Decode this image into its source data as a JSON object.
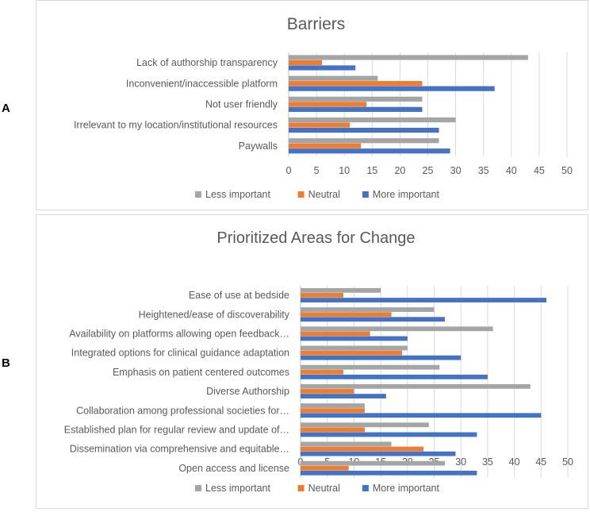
{
  "panel_labels": [
    "A",
    "B"
  ],
  "colors": {
    "less": "#A5A5A5",
    "neutral": "#ED7D31",
    "more": "#4472C4",
    "grid": "#D9D9D9",
    "text": "#595959"
  },
  "chart_data": [
    {
      "type": "bar",
      "orientation": "horizontal",
      "title": "Barriers",
      "categories": [
        "Lack of authorship transparency",
        "Inconvenient/inaccessible platform",
        "Not user friendly",
        "Irrelevant to my location/institutional resources",
        "Paywalls"
      ],
      "series": [
        {
          "name": "Less important",
          "values": [
            43,
            16,
            24,
            30,
            27
          ]
        },
        {
          "name": "Neutral",
          "values": [
            6,
            24,
            14,
            11,
            13
          ]
        },
        {
          "name": "More important",
          "values": [
            12,
            37,
            24,
            27,
            29
          ]
        }
      ],
      "xlim": [
        0,
        50
      ],
      "ticks": [
        "0",
        "5",
        "10",
        "15",
        "20",
        "25",
        "30",
        "35",
        "40",
        "45",
        "50"
      ],
      "legend": [
        "Less important",
        "Neutral",
        "More important"
      ],
      "legend_position": "bottom",
      "grid": true
    },
    {
      "type": "bar",
      "orientation": "horizontal",
      "title": "Prioritized Areas for Change",
      "categories": [
        "Ease of use at bedside",
        "Heightened/ease of discoverability",
        "Availability on platforms allowing open feedback…",
        "Integrated options for clinical guidance adaptation",
        "Emphasis on patient centered outcomes",
        "Diverse Authorship",
        "Collaboration among professional societies for…",
        "Established plan for regular review and update of…",
        "Dissemination via comprehensive and equitable…",
        "Open access and license"
      ],
      "series": [
        {
          "name": "Less important",
          "values": [
            15,
            25,
            36,
            20,
            26,
            43,
            12,
            24,
            17,
            27
          ]
        },
        {
          "name": "Neutral",
          "values": [
            8,
            17,
            13,
            19,
            8,
            10,
            12,
            12,
            23,
            9
          ]
        },
        {
          "name": "More important",
          "values": [
            46,
            27,
            20,
            30,
            35,
            16,
            45,
            33,
            29,
            33
          ]
        }
      ],
      "xlim": [
        0,
        50
      ],
      "ticks": [
        "0",
        "5",
        "10",
        "15",
        "20",
        "25",
        "30",
        "35",
        "40",
        "45",
        "50"
      ],
      "legend": [
        "Less important",
        "Neutral",
        "More important"
      ],
      "legend_position": "bottom",
      "grid": true
    }
  ]
}
